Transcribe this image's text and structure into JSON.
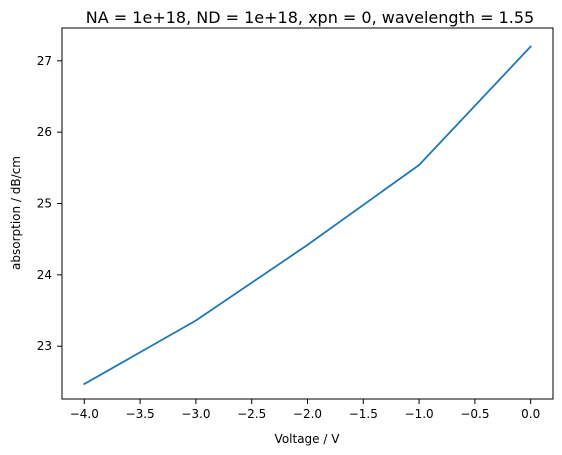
{
  "chart_data": {
    "type": "line",
    "title": "NA = 1e+18, ND = 1e+18, xpn = 0, wavelength = 1.55",
    "xlabel": "Voltage / V",
    "ylabel": "absorption / dB/cm",
    "xlim": [
      -4.2,
      0.2
    ],
    "ylim": [
      22.26,
      27.46
    ],
    "xticks": [
      -4.0,
      -3.5,
      -3.0,
      -2.5,
      -2.0,
      -1.5,
      -1.0,
      -0.5,
      0.0
    ],
    "xtick_labels": [
      "−4.0",
      "−3.5",
      "−3.0",
      "−2.5",
      "−2.0",
      "−1.5",
      "−1.0",
      "−0.5",
      "0.0"
    ],
    "yticks": [
      23,
      24,
      25,
      26,
      27
    ],
    "ytick_labels": [
      "23",
      "24",
      "25",
      "26",
      "27"
    ],
    "grid": false,
    "series": [
      {
        "color": "#1f77b4",
        "x": [
          -4.0,
          -3.0,
          -2.0,
          -1.0,
          0.0
        ],
        "y": [
          22.47,
          23.36,
          24.42,
          25.54,
          27.2
        ]
      }
    ]
  }
}
